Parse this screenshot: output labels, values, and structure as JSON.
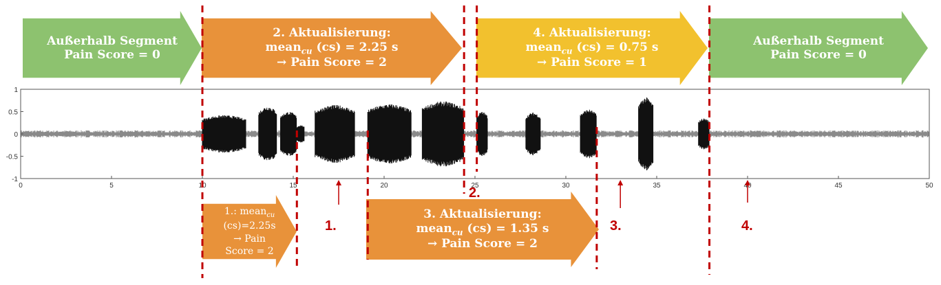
{
  "top_arrows": [
    {
      "line1": "Außerhalb Segment",
      "line2": "Pain Score = 0",
      "color": "#8dc26f"
    },
    {
      "line1": "2. Aktualisierung:",
      "mean_word": "mean",
      "sub": "cu",
      "mean_rest": " (cs) = 2.25 s",
      "line3": "→  Pain Score = 2",
      "color": "#e8923a"
    },
    {
      "line1": "4. Aktualisierung:",
      "mean_word": "mean",
      "sub": "cu",
      "mean_rest": " (cs) = 0.75 s",
      "line3": "→  Pain Score = 1",
      "color": "#f2c12e"
    },
    {
      "line1": "Außerhalb Segment",
      "line2": "Pain Score = 0",
      "color": "#8dc26f"
    }
  ],
  "bottom_arrows": [
    {
      "line1": "1.: mean",
      "sub": "cu",
      "line2": "(cs)=2.25s",
      "line3": "→  Pain",
      "line4": "Score = 2",
      "color": "#e8923a"
    },
    {
      "line1": "3. Aktualisierung:",
      "mean_word": "mean",
      "sub": "cu",
      "mean_rest": " (cs) = 1.35 s",
      "line3": "→  Pain Score = 2",
      "color": "#e8923a"
    }
  ],
  "markers": [
    {
      "label": "1.",
      "x": 17.5
    },
    {
      "label": "2.",
      "x": 25.0
    },
    {
      "label": "3.",
      "x": 33.0
    },
    {
      "label": "4.",
      "x": 40.0
    }
  ],
  "chart_data": {
    "type": "line",
    "x_ticks": [
      "0",
      "5",
      "10",
      "15",
      "20",
      "25",
      "30",
      "35",
      "40",
      "45",
      "50"
    ],
    "y_ticks": [
      "1",
      "0.5",
      "0",
      "-0.5",
      "-1"
    ],
    "xlim": [
      0,
      50
    ],
    "ylim": [
      -1,
      1
    ],
    "bursts": [
      {
        "start": 10.0,
        "end": 12.4,
        "amp": 0.42
      },
      {
        "start": 13.1,
        "end": 14.1,
        "amp": 0.62
      },
      {
        "start": 14.3,
        "end": 15.2,
        "amp": 0.5
      },
      {
        "start": 15.2,
        "end": 15.6,
        "amp": 0.2
      },
      {
        "start": 16.2,
        "end": 18.4,
        "amp": 0.65
      },
      {
        "start": 19.1,
        "end": 21.5,
        "amp": 0.67
      },
      {
        "start": 22.1,
        "end": 24.4,
        "amp": 0.73
      },
      {
        "start": 25.1,
        "end": 25.7,
        "amp": 0.5
      },
      {
        "start": 27.8,
        "end": 28.6,
        "amp": 0.48
      },
      {
        "start": 30.8,
        "end": 31.7,
        "amp": 0.55
      },
      {
        "start": 34.0,
        "end": 34.8,
        "amp": 0.82
      },
      {
        "start": 37.3,
        "end": 37.9,
        "amp": 0.35
      }
    ],
    "noise_amp": 0.08,
    "dashed_lines_x": [
      10.0,
      15.2,
      19.1,
      24.4,
      25.1,
      31.7,
      37.9
    ]
  }
}
